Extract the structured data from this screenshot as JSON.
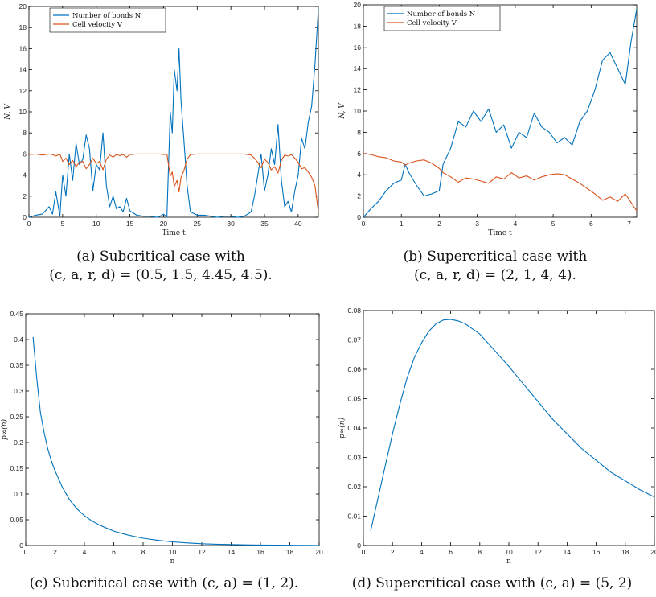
{
  "colors": {
    "bonds": "#0072BD",
    "velocity": "#D95319",
    "axis": "#000000",
    "curve": "#0072BD"
  },
  "chart_data": [
    {
      "id": "a",
      "type": "line",
      "xlabel": "Time t",
      "ylabel": "N, V",
      "xlim": [
        0,
        43
      ],
      "ylim": [
        0,
        20
      ],
      "xticks": [
        0,
        5,
        10,
        15,
        20,
        25,
        30,
        35,
        40
      ],
      "yticks": [
        0,
        2,
        4,
        6,
        8,
        10,
        12,
        14,
        16,
        18,
        20
      ],
      "legend": "top-left",
      "caption": [
        "(a) Subcritical case with",
        "(c, a, r, d) = (0.5, 1.5, 4.45, 4.5)."
      ],
      "series": [
        {
          "name": "Number of bonds N",
          "color": "bonds",
          "x": [
            0,
            1,
            2,
            3,
            3.5,
            4,
            4.6,
            5,
            5.5,
            6,
            6.5,
            7,
            7.5,
            8,
            8.5,
            9,
            9.5,
            10,
            10.5,
            11,
            11.5,
            12,
            12.5,
            13,
            13.5,
            14,
            14.5,
            15,
            16,
            17,
            18,
            19,
            19.5,
            20,
            20.5,
            21,
            21.3,
            21.6,
            22,
            22.3,
            22.6,
            23,
            23.5,
            24,
            25,
            26,
            27,
            28,
            29,
            30,
            31,
            32,
            33,
            33.5,
            34,
            34.5,
            35,
            35.5,
            36,
            36.5,
            37,
            37.5,
            38,
            38.5,
            39,
            39.5,
            40,
            40.5,
            41,
            41.5,
            42,
            42.5,
            43
          ],
          "y": [
            0,
            0.2,
            0.3,
            1,
            0.3,
            2.4,
            0.1,
            4,
            2,
            6,
            3.5,
            7,
            5,
            5.5,
            7.8,
            6.5,
            2.5,
            5,
            4.5,
            8,
            3,
            1,
            2,
            0.8,
            1,
            0.5,
            1.8,
            0.6,
            0.2,
            0.1,
            0.1,
            0,
            0.1,
            0.3,
            0,
            10,
            8,
            14,
            12,
            16,
            11,
            7.5,
            3,
            0.5,
            0.2,
            0.2,
            0.1,
            0,
            0.1,
            0.1,
            0,
            0.1,
            0.5,
            2,
            4,
            6,
            2.5,
            4,
            6.5,
            5,
            8.8,
            3.5,
            1,
            1.5,
            0.5,
            2.5,
            4,
            7.5,
            6.5,
            9,
            10.5,
            14.5,
            19.8
          ]
        },
        {
          "name": "Cell velocity V",
          "color": "velocity",
          "x": [
            0,
            1,
            2,
            3,
            3.5,
            4,
            4.6,
            5,
            5.5,
            6,
            6.5,
            7,
            7.5,
            8,
            8.5,
            9,
            9.5,
            10,
            10.5,
            11,
            11.5,
            12,
            12.5,
            13,
            13.5,
            14,
            14.5,
            15,
            16,
            17,
            18,
            19,
            19.5,
            20,
            20.5,
            21,
            21.3,
            21.6,
            22,
            22.3,
            22.6,
            23,
            23.5,
            24,
            25,
            26,
            27,
            28,
            29,
            30,
            31,
            32,
            33,
            33.5,
            34,
            34.5,
            35,
            35.5,
            36,
            36.5,
            37,
            37.5,
            38,
            38.5,
            39,
            39.5,
            40,
            40.5,
            41,
            41.5,
            42,
            42.5,
            43
          ],
          "y": [
            5.95,
            6,
            5.9,
            6,
            5.95,
            5.8,
            6,
            5.3,
            5.6,
            5,
            5.4,
            4.8,
            5.2,
            5.3,
            4.6,
            5,
            5.6,
            5.1,
            5.3,
            4.5,
            5.5,
            5.9,
            5.7,
            5.95,
            5.85,
            5.95,
            5.7,
            5.95,
            6,
            6,
            6,
            6,
            6,
            5.95,
            6,
            3.9,
            4.3,
            2.9,
            3.5,
            2.4,
            3.8,
            4.4,
            5.5,
            5.95,
            6,
            6,
            6,
            6,
            6,
            6,
            6,
            6,
            5.9,
            5.6,
            5.2,
            4.7,
            5.5,
            5.2,
            4.5,
            4.8,
            4.2,
            5.4,
            5.9,
            5.8,
            5.95,
            5.6,
            5.2,
            4.6,
            4.7,
            4.3,
            3.8,
            3,
            0.5
          ]
        }
      ]
    },
    {
      "id": "b",
      "type": "line",
      "xlabel": "Time t",
      "ylabel": "N, V",
      "xlim": [
        0,
        7.2
      ],
      "ylim": [
        0,
        20
      ],
      "xticks": [
        0,
        1,
        2,
        3,
        4,
        5,
        6,
        7
      ],
      "yticks": [
        0,
        2,
        4,
        6,
        8,
        10,
        12,
        14,
        16,
        18,
        20
      ],
      "legend": "top-left",
      "caption": [
        "(b) Supercritical case with",
        "(c, a, r, d) = (2, 1, 4, 4)."
      ],
      "series": [
        {
          "name": "Number of bonds N",
          "color": "bonds",
          "x": [
            0,
            0.2,
            0.4,
            0.6,
            0.8,
            1,
            1.1,
            1.2,
            1.4,
            1.6,
            1.8,
            2,
            2.1,
            2.3,
            2.5,
            2.7,
            2.9,
            3.1,
            3.3,
            3.5,
            3.7,
            3.9,
            4.1,
            4.3,
            4.5,
            4.7,
            4.9,
            5.1,
            5.3,
            5.5,
            5.7,
            5.9,
            6.1,
            6.3,
            6.5,
            6.7,
            6.9,
            7.05,
            7.2
          ],
          "y": [
            0,
            0.8,
            1.5,
            2.5,
            3.2,
            3.5,
            5,
            4.2,
            3,
            2,
            2.2,
            2.5,
            5,
            6.5,
            9,
            8.5,
            10,
            9,
            10.2,
            8,
            8.7,
            6.5,
            8,
            7.5,
            9.8,
            8.5,
            8,
            7,
            7.5,
            6.8,
            9,
            10,
            12,
            14.8,
            15.5,
            14,
            12.5,
            16.5,
            19.6
          ]
        },
        {
          "name": "Cell velocity V",
          "color": "velocity",
          "x": [
            0,
            0.2,
            0.4,
            0.6,
            0.8,
            1,
            1.1,
            1.2,
            1.4,
            1.6,
            1.8,
            2,
            2.1,
            2.3,
            2.5,
            2.7,
            2.9,
            3.1,
            3.3,
            3.5,
            3.7,
            3.9,
            4.1,
            4.3,
            4.5,
            4.7,
            4.9,
            5.1,
            5.3,
            5.5,
            5.7,
            5.9,
            6.1,
            6.3,
            6.5,
            6.7,
            6.9,
            7.05,
            7.2
          ],
          "y": [
            6,
            5.9,
            5.7,
            5.6,
            5.3,
            5.2,
            4.9,
            5.1,
            5.3,
            5.4,
            5.1,
            4.6,
            4.2,
            3.8,
            3.3,
            3.7,
            3.6,
            3.4,
            3.2,
            3.8,
            3.6,
            4.2,
            3.7,
            3.9,
            3.5,
            3.8,
            4,
            4.1,
            4,
            3.6,
            3.2,
            2.7,
            2.2,
            1.6,
            1.9,
            1.5,
            2.2,
            1.4,
            0.6
          ]
        }
      ]
    },
    {
      "id": "c",
      "type": "line",
      "xlabel": "n",
      "ylabel": "p∞(n)",
      "xlim": [
        0,
        20
      ],
      "ylim": [
        0,
        0.45
      ],
      "xticks": [
        0,
        2,
        4,
        6,
        8,
        10,
        12,
        14,
        16,
        18,
        20
      ],
      "yticks": [
        0,
        0.05,
        0.1,
        0.15,
        0.2,
        0.25,
        0.3,
        0.35,
        0.4,
        0.45
      ],
      "caption": [
        "(c) Subcritical case with (c, a) = (1, 2)."
      ],
      "series": [
        {
          "color": "curve",
          "x": [
            0.5,
            0.75,
            1,
            1.25,
            1.5,
            1.75,
            2,
            2.5,
            3,
            3.5,
            4,
            4.5,
            5,
            6,
            7,
            8,
            9,
            10,
            11,
            12,
            13,
            14,
            15,
            16,
            17,
            18,
            19,
            20
          ],
          "y": [
            0.405,
            0.325,
            0.258,
            0.22,
            0.188,
            0.164,
            0.145,
            0.113,
            0.088,
            0.071,
            0.058,
            0.048,
            0.04,
            0.028,
            0.02,
            0.014,
            0.01,
            0.007,
            0.005,
            0.0035,
            0.0025,
            0.0018,
            0.0013,
            0.0009,
            0.0006,
            0.0004,
            0.0003,
            0.0002
          ]
        }
      ]
    },
    {
      "id": "d",
      "type": "line",
      "xlabel": "n",
      "ylabel": "p∞(n)",
      "xlim": [
        0,
        20
      ],
      "ylim": [
        0,
        0.08
      ],
      "xticks": [
        0,
        2,
        4,
        6,
        8,
        10,
        12,
        14,
        16,
        18,
        20
      ],
      "yticks": [
        0,
        0.01,
        0.02,
        0.03,
        0.04,
        0.05,
        0.06,
        0.07,
        0.08
      ],
      "caption": [
        "(d) Supercritical case with (c, a) = (5, 2)"
      ],
      "series": [
        {
          "color": "curve",
          "x": [
            0.5,
            1,
            1.5,
            2,
            2.5,
            3,
            3.5,
            4,
            4.5,
            5,
            5.5,
            6,
            6.5,
            7,
            8,
            9,
            10,
            11,
            12,
            13,
            14,
            15,
            16,
            17,
            18,
            19,
            20
          ],
          "y": [
            0.005,
            0.016,
            0.027,
            0.038,
            0.048,
            0.057,
            0.064,
            0.069,
            0.073,
            0.0755,
            0.0768,
            0.077,
            0.0765,
            0.0755,
            0.072,
            0.0665,
            0.061,
            0.055,
            0.049,
            0.043,
            0.038,
            0.033,
            0.029,
            0.025,
            0.022,
            0.019,
            0.0165
          ]
        }
      ]
    }
  ]
}
